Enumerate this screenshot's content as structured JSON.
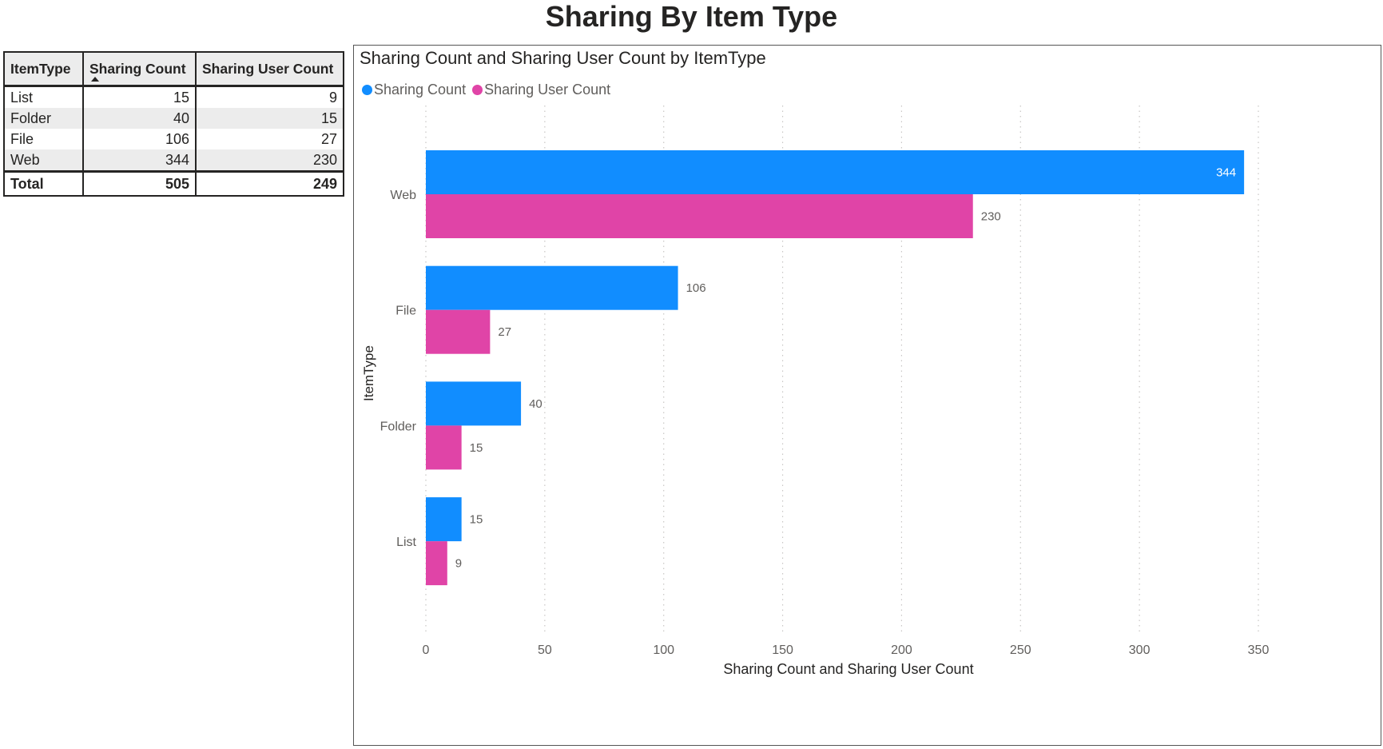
{
  "page": {
    "title": "Sharing By Item Type"
  },
  "table": {
    "headers": [
      "ItemType",
      "Sharing Count",
      "Sharing User Count"
    ],
    "sort_column": "Sharing Count",
    "rows": [
      {
        "item_type": "List",
        "sharing_count": "15",
        "sharing_user_count": "9"
      },
      {
        "item_type": "Folder",
        "sharing_count": "40",
        "sharing_user_count": "15"
      },
      {
        "item_type": "File",
        "sharing_count": "106",
        "sharing_user_count": "27"
      },
      {
        "item_type": "Web",
        "sharing_count": "344",
        "sharing_user_count": "230"
      }
    ],
    "total": {
      "label": "Total",
      "sharing_count": "505",
      "sharing_user_count": "249"
    }
  },
  "chart_data": {
    "type": "bar",
    "orientation": "horizontal",
    "title": "Sharing Count and Sharing User Count by ItemType",
    "xlabel": "Sharing Count and Sharing User Count",
    "ylabel": "ItemType",
    "categories": [
      "Web",
      "File",
      "Folder",
      "List"
    ],
    "series": [
      {
        "name": "Sharing Count",
        "color": "#118dff",
        "values": [
          344,
          106,
          40,
          15
        ]
      },
      {
        "name": "Sharing User Count",
        "color": "#e044a7",
        "values": [
          230,
          27,
          15,
          9
        ]
      }
    ],
    "xlim": [
      0,
      350
    ],
    "xticks": [
      0,
      50,
      100,
      150,
      200,
      250,
      300,
      350
    ],
    "grid": "vertical-dotted",
    "legend_position": "top-left",
    "data_labels": true
  }
}
